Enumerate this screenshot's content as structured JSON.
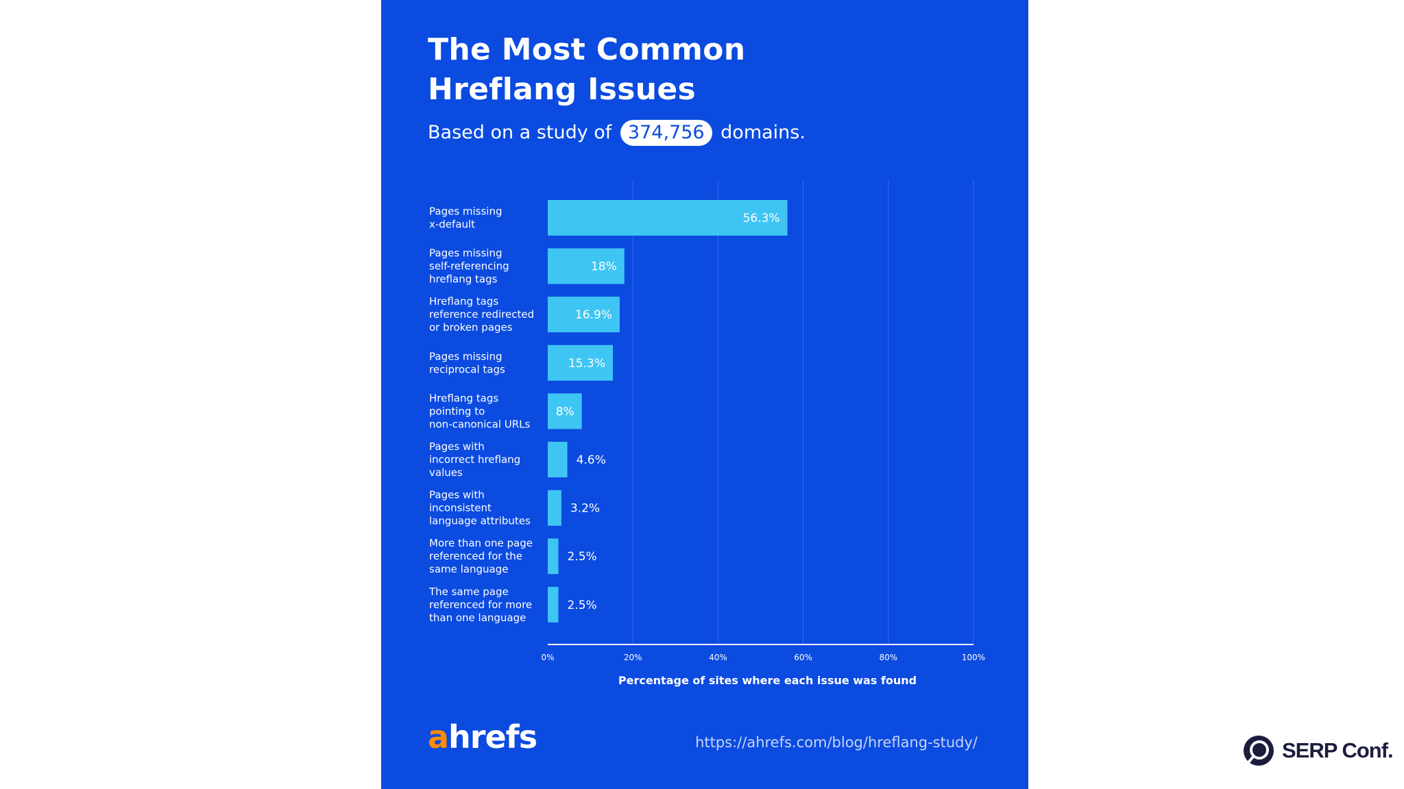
{
  "header": {
    "title_line1": "The Most Common",
    "title_line2": "Hreflang Issues",
    "subtitle_prefix": "Based on a study of",
    "subtitle_count": "374,756",
    "subtitle_suffix": "domains."
  },
  "chart_data": {
    "type": "bar",
    "orientation": "horizontal",
    "categories": [
      [
        "Pages missing",
        "x-default"
      ],
      [
        "Pages missing",
        "self-referencing",
        "hreflang tags"
      ],
      [
        "Hreflang tags",
        "reference redirected",
        "or broken pages"
      ],
      [
        "Pages missing",
        "reciprocal tags"
      ],
      [
        "Hreflang tags",
        "pointing to",
        "non-canonical URLs"
      ],
      [
        "Pages with",
        "incorrect hreflang",
        "values"
      ],
      [
        "Pages with",
        "inconsistent",
        "language attributes"
      ],
      [
        "More than one page",
        "referenced for the",
        "same language"
      ],
      [
        "The same page",
        "referenced for more",
        "than one language"
      ]
    ],
    "values": [
      56.3,
      18,
      16.9,
      15.3,
      8,
      4.6,
      3.2,
      2.5,
      2.5
    ],
    "value_labels": [
      "56.3%",
      "18%",
      "16.9%",
      "15.3%",
      "8%",
      "4.6%",
      "3.2%",
      "2.5%",
      "2.5%"
    ],
    "xlabel": "Percentage of sites where each issue was found",
    "xlim": [
      0,
      100
    ],
    "xticks": [
      0,
      20,
      40,
      60,
      80,
      100
    ],
    "xtick_labels": [
      "0%",
      "20%",
      "40%",
      "60%",
      "80%",
      "100%"
    ],
    "grid": true,
    "bar_color": "#3fc5f3",
    "background_color": "#0b4be0"
  },
  "footer": {
    "logo_a": "a",
    "logo_rest": "hrefs",
    "source_url": "https://ahrefs.com/blog/hreflang-study/"
  },
  "branding": {
    "serp_text": "SERP Conf.",
    "serp_icon": "serp-conf-logo-icon"
  }
}
